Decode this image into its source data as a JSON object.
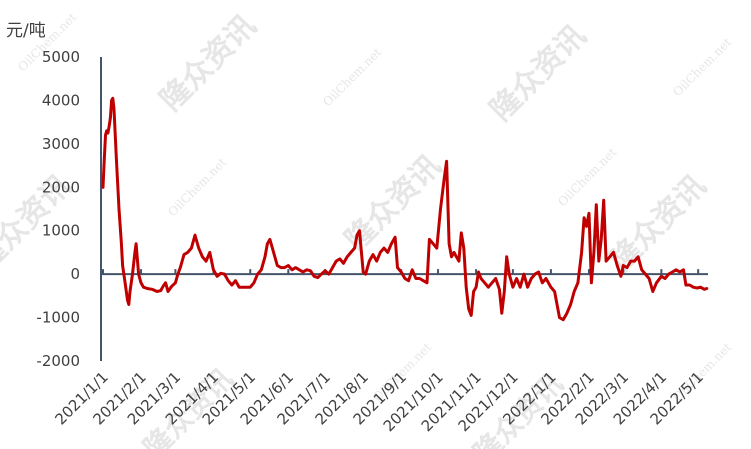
{
  "chart_data": {
    "type": "line",
    "title": "",
    "ylabel": "元/吨",
    "xlabel": "",
    "ylim": [
      -2000,
      5000
    ],
    "yticks": [
      5000,
      4000,
      3000,
      2000,
      1000,
      0,
      -1000,
      -2000
    ],
    "ytick_labels": [
      "5000",
      "4000",
      "3000",
      "2000",
      "1000",
      "0",
      "-1000",
      "-2000"
    ],
    "xticks": [
      "2021/1/1",
      "2021/2/1",
      "2021/3/1",
      "2021/4/1",
      "2021/5/1",
      "2021/6/1",
      "2021/7/1",
      "2021/8/1",
      "2021/9/1",
      "2021/10/1",
      "2021/11/1",
      "2021/12/1",
      "2022/1/1",
      "2022/2/1",
      "2022/3/1",
      "2022/4/1",
      "2022/5/1"
    ],
    "grid": false,
    "legend": "none",
    "line_color": "#c00000",
    "axis_color": "#44546a",
    "watermarks": [
      "隆众资讯",
      "OilChem.net"
    ],
    "series": [
      {
        "name": "",
        "points": [
          [
            "2021/1/1",
            2000
          ],
          [
            "2021/1/2",
            2600
          ],
          [
            "2021/1/3",
            3200
          ],
          [
            "2021/1/4",
            3300
          ],
          [
            "2021/1/5",
            3250
          ],
          [
            "2021/1/6",
            3400
          ],
          [
            "2021/1/7",
            3600
          ],
          [
            "2021/1/8",
            4000
          ],
          [
            "2021/1/9",
            4050
          ],
          [
            "2021/1/10",
            3800
          ],
          [
            "2021/1/12",
            2600
          ],
          [
            "2021/1/14",
            1500
          ],
          [
            "2021/1/16",
            700
          ],
          [
            "2021/1/17",
            200
          ],
          [
            "2021/1/19",
            -200
          ],
          [
            "2021/1/21",
            -600
          ],
          [
            "2021/1/22",
            -700
          ],
          [
            "2021/1/23",
            -400
          ],
          [
            "2021/1/25",
            0
          ],
          [
            "2021/1/27",
            500
          ],
          [
            "2021/1/28",
            700
          ],
          [
            "2021/1/30",
            0
          ],
          [
            "2021/2/1",
            -200
          ],
          [
            "2021/2/3",
            -300
          ],
          [
            "2021/2/6",
            -330
          ],
          [
            "2021/2/10",
            -350
          ],
          [
            "2021/2/14",
            -400
          ],
          [
            "2021/2/17",
            -380
          ],
          [
            "2021/2/19",
            -280
          ],
          [
            "2021/2/21",
            -200
          ],
          [
            "2021/2/23",
            -400
          ],
          [
            "2021/2/26",
            -280
          ],
          [
            "2021/3/1",
            -200
          ],
          [
            "2021/3/3",
            0
          ],
          [
            "2021/3/5",
            150
          ],
          [
            "2021/3/8",
            450
          ],
          [
            "2021/3/11",
            500
          ],
          [
            "2021/3/14",
            600
          ],
          [
            "2021/3/17",
            900
          ],
          [
            "2021/3/20",
            600
          ],
          [
            "2021/3/23",
            400
          ],
          [
            "2021/3/26",
            300
          ],
          [
            "2021/3/29",
            500
          ],
          [
            "2021/4/1",
            100
          ],
          [
            "2021/4/4",
            -50
          ],
          [
            "2021/4/7",
            20
          ],
          [
            "2021/4/10",
            0
          ],
          [
            "2021/4/13",
            -150
          ],
          [
            "2021/4/16",
            -250
          ],
          [
            "2021/4/19",
            -150
          ],
          [
            "2021/4/22",
            -300
          ],
          [
            "2021/4/25",
            -300
          ],
          [
            "2021/4/28",
            -300
          ],
          [
            "2021/5/1",
            -300
          ],
          [
            "2021/5/4",
            -200
          ],
          [
            "2021/5/7",
            0
          ],
          [
            "2021/5/10",
            100
          ],
          [
            "2021/5/13",
            400
          ],
          [
            "2021/5/15",
            700
          ],
          [
            "2021/5/17",
            800
          ],
          [
            "2021/5/20",
            500
          ],
          [
            "2021/5/23",
            200
          ],
          [
            "2021/5/26",
            150
          ],
          [
            "2021/5/29",
            150
          ],
          [
            "2021/6/1",
            200
          ],
          [
            "2021/6/4",
            100
          ],
          [
            "2021/6/7",
            150
          ],
          [
            "2021/6/10",
            100
          ],
          [
            "2021/6/13",
            50
          ],
          [
            "2021/6/16",
            100
          ],
          [
            "2021/6/19",
            80
          ],
          [
            "2021/6/22",
            -50
          ],
          [
            "2021/6/25",
            -80
          ],
          [
            "2021/6/28",
            0
          ],
          [
            "2021/7/1",
            80
          ],
          [
            "2021/7/4",
            0
          ],
          [
            "2021/7/7",
            150
          ],
          [
            "2021/7/10",
            300
          ],
          [
            "2021/7/13",
            350
          ],
          [
            "2021/7/16",
            250
          ],
          [
            "2021/7/19",
            400
          ],
          [
            "2021/7/22",
            500
          ],
          [
            "2021/7/25",
            600
          ],
          [
            "2021/7/27",
            900
          ],
          [
            "2021/7/29",
            1000
          ],
          [
            "2021/8/1",
            50
          ],
          [
            "2021/8/3",
            0
          ],
          [
            "2021/8/6",
            300
          ],
          [
            "2021/8/9",
            450
          ],
          [
            "2021/8/12",
            300
          ],
          [
            "2021/8/15",
            500
          ],
          [
            "2021/8/18",
            600
          ],
          [
            "2021/8/21",
            500
          ],
          [
            "2021/8/24",
            700
          ],
          [
            "2021/8/27",
            850
          ],
          [
            "2021/8/29",
            150
          ],
          [
            "2021/9/1",
            50
          ],
          [
            "2021/9/4",
            -100
          ],
          [
            "2021/9/7",
            -150
          ],
          [
            "2021/9/10",
            100
          ],
          [
            "2021/9/13",
            -100
          ],
          [
            "2021/9/16",
            -100
          ],
          [
            "2021/9/19",
            -150
          ],
          [
            "2021/9/22",
            -200
          ],
          [
            "2021/9/24",
            800
          ],
          [
            "2021/9/27",
            700
          ],
          [
            "2021/9/30",
            600
          ],
          [
            "2021/10/3",
            1500
          ],
          [
            "2021/10/6",
            2200
          ],
          [
            "2021/10/8",
            2600
          ],
          [
            "2021/10/10",
            700
          ],
          [
            "2021/10/12",
            400
          ],
          [
            "2021/10/14",
            500
          ],
          [
            "2021/10/16",
            400
          ],
          [
            "2021/10/18",
            300
          ],
          [
            "2021/10/20",
            950
          ],
          [
            "2021/10/22",
            600
          ],
          [
            "2021/10/24",
            -300
          ],
          [
            "2021/10/26",
            -800
          ],
          [
            "2021/10/28",
            -950
          ],
          [
            "2021/10/30",
            -400
          ],
          [
            "2021/11/1",
            -300
          ],
          [
            "2021/11/3",
            50
          ],
          [
            "2021/11/5",
            -100
          ],
          [
            "2021/11/8",
            -200
          ],
          [
            "2021/11/11",
            -300
          ],
          [
            "2021/11/14",
            -200
          ],
          [
            "2021/11/17",
            -100
          ],
          [
            "2021/11/20",
            -350
          ],
          [
            "2021/11/22",
            -900
          ],
          [
            "2021/11/24",
            -400
          ],
          [
            "2021/11/26",
            400
          ],
          [
            "2021/11/28",
            0
          ],
          [
            "2021/12/1",
            -300
          ],
          [
            "2021/12/4",
            -100
          ],
          [
            "2021/12/7",
            -300
          ],
          [
            "2021/12/10",
            0
          ],
          [
            "2021/12/13",
            -300
          ],
          [
            "2021/12/16",
            -100
          ],
          [
            "2021/12/19",
            0
          ],
          [
            "2021/12/22",
            50
          ],
          [
            "2021/12/25",
            -200
          ],
          [
            "2021/12/28",
            -100
          ],
          [
            "2022/1/1",
            -300
          ],
          [
            "2022/1/4",
            -400
          ],
          [
            "2022/1/8",
            -1000
          ],
          [
            "2022/1/11",
            -1050
          ],
          [
            "2022/1/14",
            -900
          ],
          [
            "2022/1/17",
            -700
          ],
          [
            "2022/1/20",
            -400
          ],
          [
            "2022/1/23",
            -200
          ],
          [
            "2022/1/26",
            500
          ],
          [
            "2022/1/28",
            1300
          ],
          [
            "2022/1/30",
            1100
          ],
          [
            "2022/2/1",
            1400
          ],
          [
            "2022/2/3",
            -200
          ],
          [
            "2022/2/5",
            500
          ],
          [
            "2022/2/7",
            1600
          ],
          [
            "2022/2/9",
            300
          ],
          [
            "2022/2/11",
            800
          ],
          [
            "2022/2/13",
            1700
          ],
          [
            "2022/2/15",
            300
          ],
          [
            "2022/2/18",
            400
          ],
          [
            "2022/2/21",
            500
          ],
          [
            "2022/2/24",
            200
          ],
          [
            "2022/2/27",
            -50
          ],
          [
            "2022/3/1",
            200
          ],
          [
            "2022/3/4",
            150
          ],
          [
            "2022/3/7",
            300
          ],
          [
            "2022/3/10",
            300
          ],
          [
            "2022/3/13",
            400
          ],
          [
            "2022/3/16",
            100
          ],
          [
            "2022/3/19",
            0
          ],
          [
            "2022/3/22",
            -100
          ],
          [
            "2022/3/25",
            -400
          ],
          [
            "2022/3/28",
            -200
          ],
          [
            "2022/4/1",
            -50
          ],
          [
            "2022/4/4",
            -100
          ],
          [
            "2022/4/7",
            0
          ],
          [
            "2022/4/10",
            50
          ],
          [
            "2022/4/13",
            100
          ],
          [
            "2022/4/16",
            50
          ],
          [
            "2022/4/19",
            100
          ],
          [
            "2022/4/21",
            -250
          ],
          [
            "2022/4/24",
            -250
          ],
          [
            "2022/4/27",
            -300
          ],
          [
            "2022/4/30",
            -320
          ],
          [
            "2022/5/3",
            -300
          ],
          [
            "2022/5/6",
            -350
          ],
          [
            "2022/5/8",
            -330
          ]
        ]
      }
    ]
  }
}
